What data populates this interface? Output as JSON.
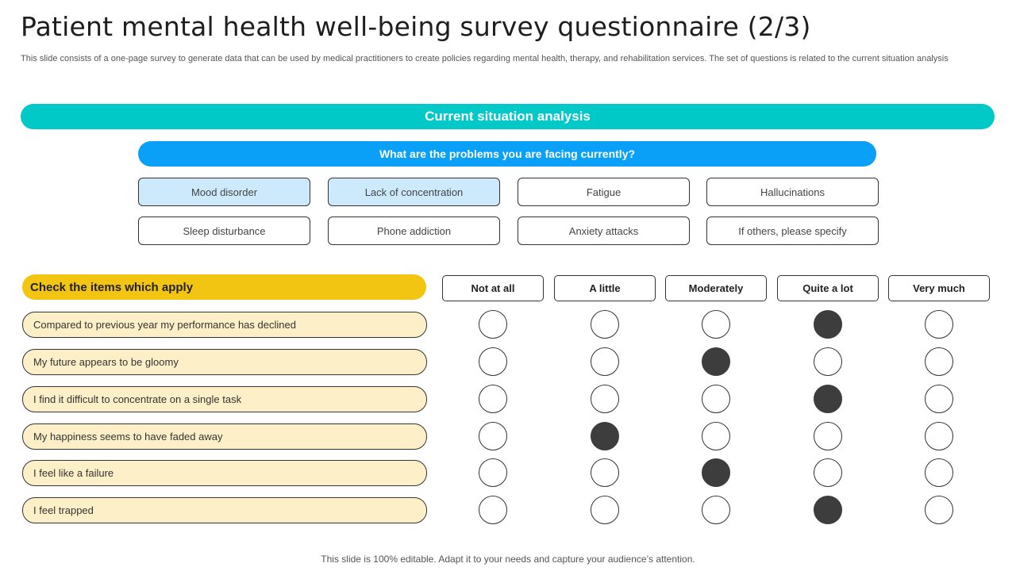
{
  "slide": {
    "title": "Patient mental health well-being survey questionnaire (2/3)",
    "subtitle": "This slide consists of a one-page survey to generate data that can be used by medical practitioners to create policies regarding mental health, therapy, and rehabilitation services. The set of questions is related to the current situation analysis",
    "footer": "This slide is 100% editable. Adapt it to your needs and capture your audience’s attention."
  },
  "section": {
    "heading": "Current situation analysis",
    "question": "What are the problems you are facing currently?",
    "options": [
      {
        "label": "Mood disorder",
        "selected": true
      },
      {
        "label": "Lack of concentration",
        "selected": true
      },
      {
        "label": "Fatigue",
        "selected": false
      },
      {
        "label": "Hallucinations",
        "selected": false
      },
      {
        "label": "Sleep disturbance",
        "selected": false
      },
      {
        "label": "Phone addiction",
        "selected": false
      },
      {
        "label": "Anxiety attacks",
        "selected": false
      },
      {
        "label": "If others, please specify",
        "selected": false
      }
    ]
  },
  "checklist": {
    "heading": "Check the items which apply",
    "scale": [
      "Not at all",
      "A little",
      "Moderately",
      "Quite a lot",
      "Very much"
    ],
    "items": [
      {
        "text": "Compared  to previous  year my performance  has declined",
        "answer": "Quite a lot"
      },
      {
        "text": "My future  appears to be gloomy",
        "answer": "Moderately"
      },
      {
        "text": "I find it difficult to concentrate on a single task",
        "answer": "Quite a lot"
      },
      {
        "text": "My happiness  seems to have  faded  away",
        "answer": "A little"
      },
      {
        "text": "I feel like a failure",
        "answer": "Moderately"
      },
      {
        "text": "I feel trapped",
        "answer": "Quite a lot"
      }
    ]
  },
  "colors": {
    "section_banner": "#00c9c8",
    "question_banner": "#0aa0f7",
    "check_banner": "#f2c512",
    "item_fill": "#fdf0c8",
    "selected_option": "#cdeafc",
    "filled_radio": "#3d3d3d"
  }
}
